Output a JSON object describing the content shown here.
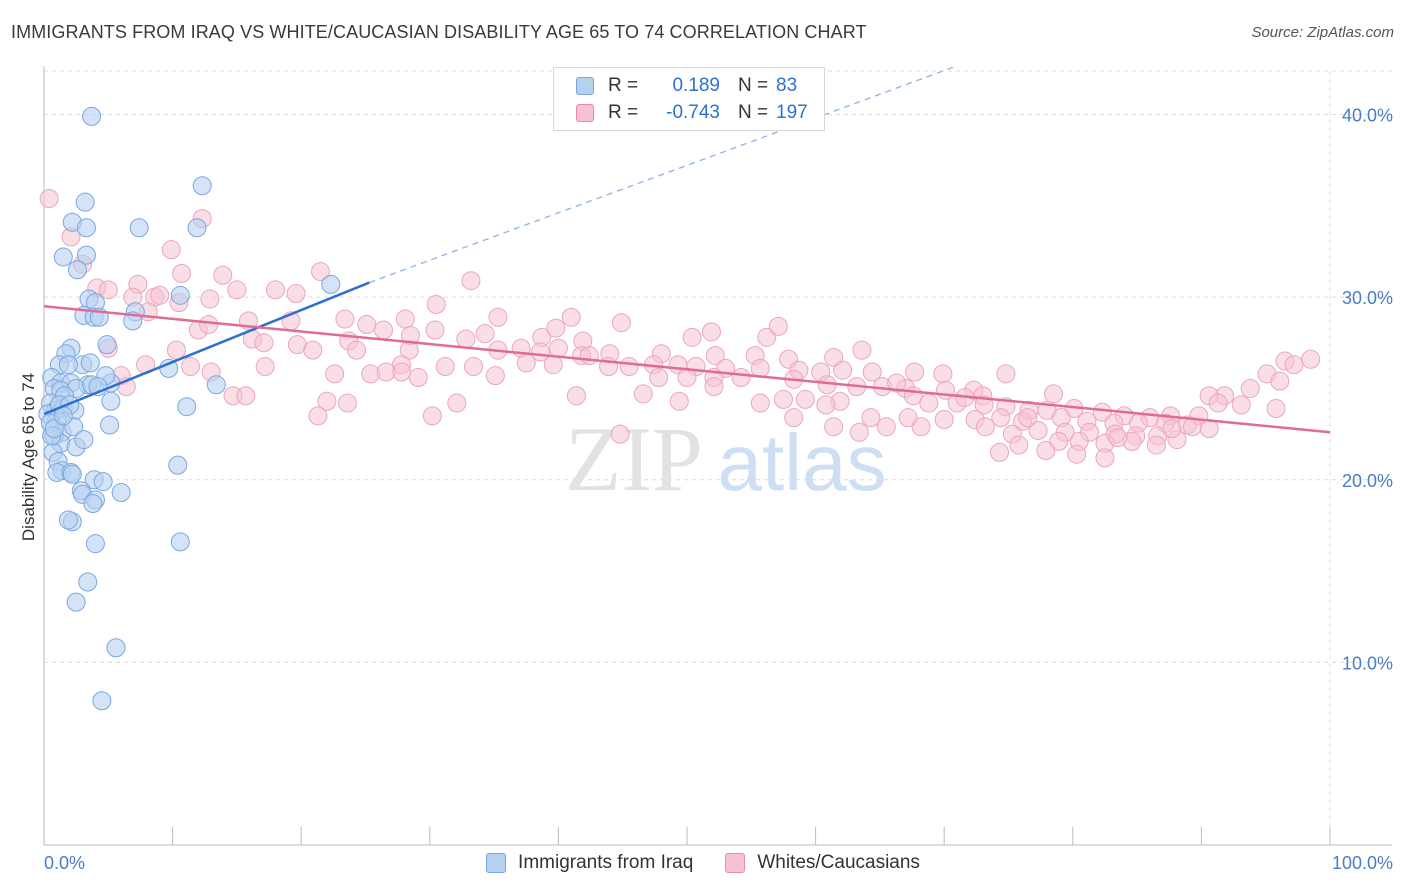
{
  "header": {
    "title": "IMMIGRANTS FROM IRAQ VS WHITE/CAUCASIAN DISABILITY AGE 65 TO 74 CORRELATION CHART",
    "source": "Source: ZipAtlas.com"
  },
  "watermark": {
    "left": "ZIP",
    "right": "atlas"
  },
  "legend": {
    "rows": [
      {
        "r_label": "R =",
        "r_value": "0.189",
        "n_label": "N =",
        "n_value": "83",
        "color": "#7aa7e0",
        "fill": "#b8d0f0"
      },
      {
        "r_label": "R =",
        "r_value": "-0.743",
        "n_label": "N =",
        "n_value": "197",
        "color": "#e88aa8",
        "fill": "#f6c2d2"
      }
    ]
  },
  "bottom_legend": [
    {
      "label": "Immigrants from Iraq",
      "color": "#7aa7e0",
      "fill": "#b8d0f0"
    },
    {
      "label": "Whites/Caucasians",
      "color": "#e88aa8",
      "fill": "#f6c2d2"
    }
  ],
  "chart_data": {
    "type": "scatter",
    "title": "IMMIGRANTS FROM IRAQ VS WHITE/CAUCASIAN DISABILITY AGE 65 TO 74 CORRELATION CHART",
    "xlabel": "",
    "ylabel": "Disability Age 65 to 74",
    "xlim": [
      0,
      100
    ],
    "ylim": [
      0,
      42
    ],
    "x_tick_labels": [
      "0.0%",
      "100.0%"
    ],
    "y_ticks": [
      10,
      20,
      30,
      40
    ],
    "y_tick_labels": [
      "10.0%",
      "20.0%",
      "30.0%",
      "40.0%"
    ],
    "grid": true,
    "legend_position": "top-center",
    "series": [
      {
        "name": "Immigrants from Iraq",
        "color": "#4a86d6",
        "fill": "#b8d0f0",
        "trend": {
          "x": [
            0,
            25.3
          ],
          "y": [
            23.6,
            30.8
          ],
          "dashed_to": [
            100,
            50.2
          ]
        },
        "points": [
          [
            3.7,
            39.9
          ],
          [
            12.3,
            36.1
          ],
          [
            3.2,
            35.2
          ],
          [
            2.2,
            34.1
          ],
          [
            3.3,
            33.8
          ],
          [
            7.4,
            33.8
          ],
          [
            11.9,
            33.8
          ],
          [
            3.3,
            32.3
          ],
          [
            1.5,
            32.2
          ],
          [
            2.6,
            31.5
          ],
          [
            10.6,
            30.1
          ],
          [
            3.5,
            29.9
          ],
          [
            4.0,
            29.7
          ],
          [
            3.1,
            29.0
          ],
          [
            3.9,
            28.9
          ],
          [
            4.3,
            28.9
          ],
          [
            7.1,
            29.2
          ],
          [
            6.9,
            28.7
          ],
          [
            4.9,
            27.4
          ],
          [
            2.1,
            27.2
          ],
          [
            1.7,
            26.9
          ],
          [
            3.0,
            26.3
          ],
          [
            3.6,
            26.4
          ],
          [
            1.2,
            26.3
          ],
          [
            1.9,
            26.3
          ],
          [
            9.7,
            26.1
          ],
          [
            0.6,
            25.6
          ],
          [
            1.3,
            25.3
          ],
          [
            2.1,
            25.3
          ],
          [
            3.4,
            25.2
          ],
          [
            0.8,
            25.0
          ],
          [
            1.3,
            24.9
          ],
          [
            2.5,
            25.0
          ],
          [
            1.6,
            24.6
          ],
          [
            0.5,
            24.2
          ],
          [
            0.9,
            23.8
          ],
          [
            1.5,
            23.9
          ],
          [
            2.4,
            23.8
          ],
          [
            0.3,
            23.6
          ],
          [
            1.0,
            23.3
          ],
          [
            0.5,
            23.1
          ],
          [
            1.4,
            22.6
          ],
          [
            0.8,
            22.4
          ],
          [
            1.3,
            22.0
          ],
          [
            0.7,
            21.5
          ],
          [
            1.1,
            21.0
          ],
          [
            2.5,
            21.8
          ],
          [
            5.2,
            25.3
          ],
          [
            5.2,
            24.3
          ],
          [
            13.4,
            25.2
          ],
          [
            11.1,
            24.0
          ],
          [
            5.1,
            23.0
          ],
          [
            4.8,
            25.7
          ],
          [
            2.3,
            22.9
          ],
          [
            3.1,
            22.2
          ],
          [
            10.4,
            20.8
          ],
          [
            3.9,
            20.0
          ],
          [
            4.6,
            19.9
          ],
          [
            2.9,
            19.4
          ],
          [
            6.0,
            19.3
          ],
          [
            3.0,
            19.2
          ],
          [
            4.0,
            18.9
          ],
          [
            3.8,
            18.7
          ],
          [
            1.4,
            20.5
          ],
          [
            1.0,
            20.4
          ],
          [
            2.1,
            20.4
          ],
          [
            2.2,
            20.3
          ],
          [
            2.2,
            17.7
          ],
          [
            1.9,
            17.8
          ],
          [
            4.0,
            16.5
          ],
          [
            10.6,
            16.6
          ],
          [
            3.4,
            14.4
          ],
          [
            2.5,
            13.3
          ],
          [
            5.6,
            10.8
          ],
          [
            4.5,
            7.9
          ],
          [
            22.3,
            30.7
          ],
          [
            0.6,
            22.4
          ],
          [
            1.2,
            24.1
          ],
          [
            2.0,
            24.1
          ],
          [
            0.8,
            22.8
          ],
          [
            1.5,
            23.5
          ],
          [
            3.7,
            25.2
          ],
          [
            4.2,
            25.1
          ]
        ]
      },
      {
        "name": "Whites/Caucasians",
        "color": "#e06b95",
        "fill": "#f6c2d2",
        "trend": {
          "x": [
            0,
            100
          ],
          "y": [
            29.5,
            22.6
          ]
        },
        "points": [
          [
            0.4,
            35.4
          ],
          [
            12.3,
            34.3
          ],
          [
            2.1,
            33.3
          ],
          [
            9.9,
            32.6
          ],
          [
            3.0,
            31.8
          ],
          [
            10.7,
            31.3
          ],
          [
            13.9,
            31.2
          ],
          [
            21.5,
            31.4
          ],
          [
            33.2,
            30.9
          ],
          [
            4.1,
            30.5
          ],
          [
            5.0,
            30.4
          ],
          [
            7.3,
            30.7
          ],
          [
            15.0,
            30.4
          ],
          [
            18.0,
            30.4
          ],
          [
            19.6,
            30.2
          ],
          [
            8.6,
            30.0
          ],
          [
            9.0,
            30.1
          ],
          [
            6.9,
            30.0
          ],
          [
            12.9,
            29.9
          ],
          [
            10.5,
            29.7
          ],
          [
            30.5,
            29.6
          ],
          [
            8.1,
            29.2
          ],
          [
            12.0,
            28.2
          ],
          [
            15.9,
            28.7
          ],
          [
            19.2,
            28.7
          ],
          [
            23.4,
            28.8
          ],
          [
            28.1,
            28.8
          ],
          [
            35.3,
            28.9
          ],
          [
            41.0,
            28.9
          ],
          [
            44.9,
            28.6
          ],
          [
            25.1,
            28.5
          ],
          [
            26.4,
            28.2
          ],
          [
            30.4,
            28.2
          ],
          [
            28.5,
            27.9
          ],
          [
            34.3,
            28.0
          ],
          [
            38.7,
            27.8
          ],
          [
            41.9,
            27.6
          ],
          [
            50.4,
            27.8
          ],
          [
            56.2,
            27.8
          ],
          [
            16.2,
            27.7
          ],
          [
            17.1,
            27.5
          ],
          [
            19.7,
            27.4
          ],
          [
            23.7,
            27.6
          ],
          [
            32.8,
            27.7
          ],
          [
            37.1,
            27.2
          ],
          [
            40.0,
            27.2
          ],
          [
            5.0,
            27.2
          ],
          [
            10.3,
            27.1
          ],
          [
            20.9,
            27.1
          ],
          [
            24.3,
            27.1
          ],
          [
            28.4,
            27.1
          ],
          [
            35.3,
            27.1
          ],
          [
            38.6,
            27.0
          ],
          [
            41.8,
            26.8
          ],
          [
            42.4,
            26.8
          ],
          [
            44.0,
            26.9
          ],
          [
            48.0,
            26.9
          ],
          [
            52.2,
            26.8
          ],
          [
            55.3,
            26.8
          ],
          [
            57.9,
            26.6
          ],
          [
            61.4,
            26.7
          ],
          [
            63.6,
            27.1
          ],
          [
            57.1,
            28.4
          ],
          [
            51.9,
            28.1
          ],
          [
            39.8,
            28.3
          ],
          [
            7.9,
            26.3
          ],
          [
            11.4,
            26.2
          ],
          [
            17.2,
            26.2
          ],
          [
            27.8,
            26.3
          ],
          [
            31.2,
            26.2
          ],
          [
            33.4,
            26.2
          ],
          [
            37.5,
            26.4
          ],
          [
            39.6,
            26.3
          ],
          [
            43.9,
            26.2
          ],
          [
            45.5,
            26.2
          ],
          [
            47.4,
            26.3
          ],
          [
            49.3,
            26.3
          ],
          [
            50.7,
            26.2
          ],
          [
            53.0,
            26.1
          ],
          [
            55.7,
            26.1
          ],
          [
            58.7,
            26.0
          ],
          [
            60.4,
            25.9
          ],
          [
            62.1,
            26.0
          ],
          [
            64.4,
            25.9
          ],
          [
            67.7,
            25.9
          ],
          [
            69.9,
            25.8
          ],
          [
            74.8,
            25.8
          ],
          [
            6.0,
            25.7
          ],
          [
            13.0,
            25.9
          ],
          [
            22.6,
            25.8
          ],
          [
            25.4,
            25.8
          ],
          [
            29.1,
            25.6
          ],
          [
            35.1,
            25.7
          ],
          [
            47.8,
            25.6
          ],
          [
            50.0,
            25.6
          ],
          [
            52.1,
            25.6
          ],
          [
            54.2,
            25.6
          ],
          [
            58.3,
            25.5
          ],
          [
            60.9,
            25.2
          ],
          [
            63.2,
            25.1
          ],
          [
            65.2,
            25.1
          ],
          [
            67.0,
            25.0
          ],
          [
            70.1,
            24.9
          ],
          [
            72.3,
            24.9
          ],
          [
            73.0,
            24.6
          ],
          [
            78.5,
            24.7
          ],
          [
            96.5,
            26.5
          ],
          [
            97.2,
            26.3
          ],
          [
            98.5,
            26.6
          ],
          [
            95.1,
            25.8
          ],
          [
            96.1,
            25.4
          ],
          [
            93.8,
            25.0
          ],
          [
            91.8,
            24.6
          ],
          [
            90.6,
            24.6
          ],
          [
            93.1,
            24.1
          ],
          [
            91.3,
            24.2
          ],
          [
            95.8,
            23.9
          ],
          [
            6.4,
            25.1
          ],
          [
            14.7,
            24.6
          ],
          [
            15.7,
            24.6
          ],
          [
            22.0,
            24.3
          ],
          [
            23.6,
            24.2
          ],
          [
            32.1,
            24.2
          ],
          [
            41.4,
            24.6
          ],
          [
            46.6,
            24.7
          ],
          [
            49.4,
            24.3
          ],
          [
            55.7,
            24.2
          ],
          [
            57.5,
            24.4
          ],
          [
            59.2,
            24.4
          ],
          [
            61.9,
            24.3
          ],
          [
            67.6,
            24.6
          ],
          [
            68.8,
            24.2
          ],
          [
            71.0,
            24.2
          ],
          [
            73.1,
            24.1
          ],
          [
            74.8,
            24.0
          ],
          [
            76.6,
            23.8
          ],
          [
            78.0,
            23.8
          ],
          [
            80.1,
            23.9
          ],
          [
            82.3,
            23.7
          ],
          [
            84.0,
            23.5
          ],
          [
            86.0,
            23.4
          ],
          [
            87.6,
            23.5
          ],
          [
            89.8,
            23.5
          ],
          [
            21.3,
            23.5
          ],
          [
            30.2,
            23.5
          ],
          [
            58.3,
            23.4
          ],
          [
            64.3,
            23.4
          ],
          [
            67.2,
            23.4
          ],
          [
            70.0,
            23.3
          ],
          [
            72.4,
            23.3
          ],
          [
            74.4,
            23.4
          ],
          [
            76.1,
            23.2
          ],
          [
            79.1,
            23.4
          ],
          [
            81.1,
            23.2
          ],
          [
            83.2,
            23.1
          ],
          [
            85.1,
            23.1
          ],
          [
            87.2,
            23.1
          ],
          [
            88.9,
            23.0
          ],
          [
            90.6,
            22.8
          ],
          [
            61.4,
            22.9
          ],
          [
            65.5,
            22.9
          ],
          [
            68.2,
            22.9
          ],
          [
            73.2,
            22.9
          ],
          [
            75.3,
            22.5
          ],
          [
            77.3,
            22.7
          ],
          [
            79.4,
            22.6
          ],
          [
            81.3,
            22.6
          ],
          [
            83.3,
            22.5
          ],
          [
            84.9,
            22.4
          ],
          [
            86.6,
            22.4
          ],
          [
            88.1,
            22.2
          ],
          [
            89.3,
            22.9
          ],
          [
            78.9,
            22.1
          ],
          [
            80.5,
            22.1
          ],
          [
            82.5,
            22.0
          ],
          [
            84.6,
            22.1
          ],
          [
            86.5,
            21.9
          ],
          [
            75.8,
            21.9
          ],
          [
            77.9,
            21.6
          ],
          [
            80.3,
            21.4
          ],
          [
            82.5,
            21.2
          ],
          [
            74.3,
            21.5
          ],
          [
            83.5,
            22.3
          ],
          [
            87.7,
            22.8
          ],
          [
            27.8,
            25.9
          ],
          [
            26.6,
            25.9
          ],
          [
            12.8,
            28.5
          ],
          [
            71.6,
            24.5
          ],
          [
            76.5,
            23.4
          ],
          [
            44.8,
            22.5
          ],
          [
            63.4,
            22.6
          ],
          [
            52.1,
            25.1
          ],
          [
            66.3,
            25.3
          ],
          [
            60.8,
            24.1
          ]
        ]
      }
    ]
  }
}
